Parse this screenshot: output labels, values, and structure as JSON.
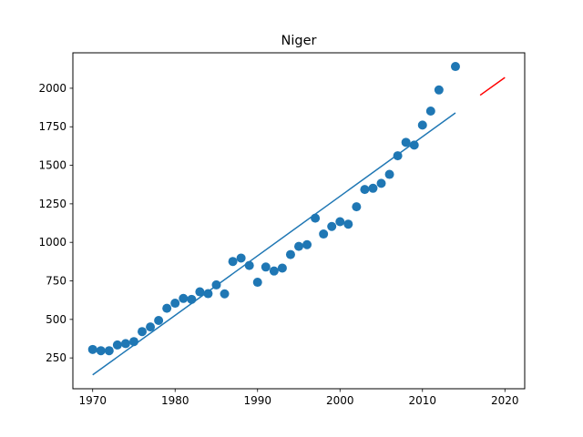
{
  "chart_data": {
    "type": "scatter",
    "title": "Niger",
    "xlabel": "",
    "ylabel": "",
    "xlim": [
      1967.6,
      2022.4
    ],
    "ylim": [
      50,
      2230
    ],
    "xticks": [
      1970,
      1980,
      1990,
      2000,
      2010,
      2020
    ],
    "yticks": [
      250,
      500,
      750,
      1000,
      1250,
      1500,
      1750,
      2000
    ],
    "grid": false,
    "legend": "none",
    "colors": {
      "points": "#1f77b4",
      "fit": "#1f77b4",
      "projection": "#ff0000"
    },
    "series": [
      {
        "kind": "scatter",
        "x": [
          1970,
          1971,
          1972,
          1973,
          1974,
          1975,
          1976,
          1977,
          1978,
          1979,
          1980,
          1981,
          1982,
          1983,
          1984,
          1985,
          1986,
          1987,
          1988,
          1989,
          1990,
          1991,
          1992,
          1993,
          1994,
          1995,
          1996,
          1997,
          1998,
          1999,
          2000,
          2001,
          2002,
          2003,
          2004,
          2005,
          2006,
          2007,
          2008,
          2009,
          2010,
          2011,
          2012,
          2014
        ],
        "y": [
          305,
          297,
          297,
          334,
          343,
          356,
          421,
          451,
          493,
          572,
          605,
          636,
          630,
          679,
          667,
          724,
          666,
          876,
          898,
          850,
          741,
          840,
          814,
          833,
          921,
          974,
          985,
          1157,
          1054,
          1103,
          1134,
          1118,
          1231,
          1343,
          1351,
          1383,
          1441,
          1562,
          1649,
          1631,
          1761,
          1852,
          1989,
          2141
        ]
      },
      {
        "kind": "line",
        "x": [
          1970,
          2014
        ],
        "y": [
          140,
          1840
        ]
      },
      {
        "kind": "line",
        "x": [
          2017,
          2020
        ],
        "y": [
          1955,
          2070
        ]
      }
    ]
  }
}
